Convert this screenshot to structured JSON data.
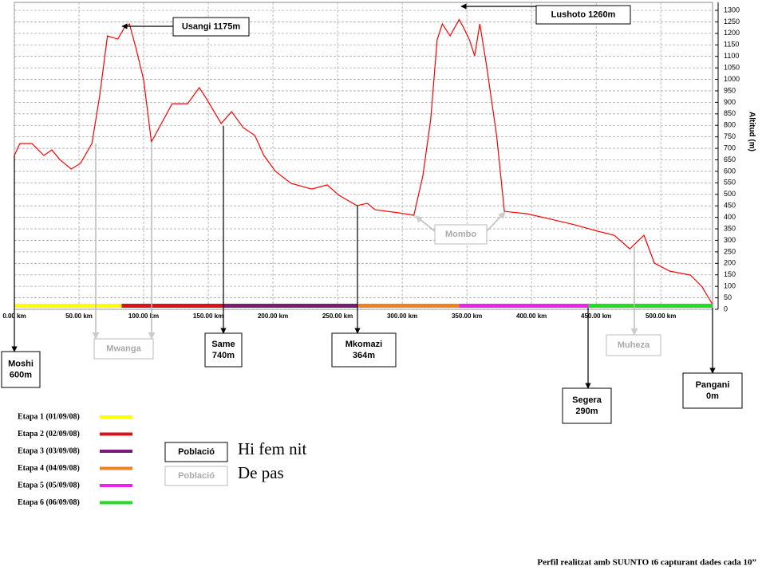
{
  "chart_data": {
    "type": "line",
    "x": [
      0,
      4.3,
      13.6,
      22.8,
      29,
      35,
      44,
      51,
      60,
      66,
      72,
      80,
      85,
      89,
      94,
      100,
      106,
      112,
      122,
      134,
      143,
      149,
      160,
      168,
      177,
      186,
      193,
      202,
      214,
      230,
      242,
      251,
      265,
      273,
      279,
      297,
      309,
      316,
      322,
      327,
      331,
      337,
      344,
      347,
      352,
      356,
      360,
      365,
      373,
      379,
      396,
      415,
      433,
      451,
      464,
      476,
      487,
      495,
      507,
      523,
      532,
      540
    ],
    "values": [
      669,
      721,
      721,
      669,
      693,
      652,
      610,
      634,
      721,
      929,
      1189,
      1175,
      1224,
      1241,
      1137,
      998,
      728,
      790,
      894,
      894,
      964,
      912,
      808,
      860,
      790,
      756,
      669,
      600,
      548,
      523,
      541,
      496,
      451,
      461,
      433,
      420,
      409,
      582,
      825,
      1172,
      1241,
      1189,
      1260,
      1230,
      1172,
      1102,
      1241,
      1068,
      756,
      426,
      416,
      392,
      368,
      340,
      322,
      263,
      322,
      201,
      166,
      149,
      97,
      21
    ],
    "color": "#ff0000",
    "xlim": [
      0,
      540
    ],
    "ylim": [
      0,
      1300
    ],
    "grid": true,
    "xticks": [
      {
        "value": 0,
        "label": "0.00 km"
      },
      {
        "value": 50,
        "label": "50.00 km"
      },
      {
        "value": 100,
        "label": "100.00 km"
      },
      {
        "value": 150,
        "label": "150.00 km"
      },
      {
        "value": 200,
        "label": "200.00 km"
      },
      {
        "value": 250,
        "label": "250.00 km"
      },
      {
        "value": 300,
        "label": "300.00 km"
      },
      {
        "value": 350,
        "label": "350.00 km"
      },
      {
        "value": 400,
        "label": "400.00 km"
      },
      {
        "value": 450,
        "label": "450.00 km"
      },
      {
        "value": 500,
        "label": "500.00 km"
      }
    ],
    "yticks": [
      0,
      50,
      100,
      150,
      200,
      250,
      300,
      350,
      400,
      450,
      500,
      550,
      600,
      650,
      700,
      750,
      800,
      850,
      900,
      950,
      1000,
      1050,
      1100,
      1150,
      1200,
      1250,
      1300
    ],
    "y_label": "Altitud (m)",
    "stages": [
      {
        "name": "Etapa 1 (01/09/08)",
        "color": "#ffff00",
        "start": 0,
        "end": 83
      },
      {
        "name": "Etapa 2 (02/09/08)",
        "color": "#dd1111",
        "start": 83,
        "end": 162
      },
      {
        "name": "Etapa 3 (03/09/08)",
        "color": "#7a1a7a",
        "start": 162,
        "end": 265
      },
      {
        "name": "Etapa 4 (04/09/08)",
        "color": "#f08020",
        "start": 265,
        "end": 344
      },
      {
        "name": "Etapa 5 (05/09/08)",
        "color": "#ee22ee",
        "start": 344,
        "end": 444
      },
      {
        "name": "Etapa 6 (06/09/08)",
        "color": "#22dd22",
        "start": 444,
        "end": 540
      }
    ],
    "annotations": [
      {
        "lines": [
          "Usangi 1175m"
        ]
      },
      {
        "lines": [
          "Lushoto 1260m"
        ]
      },
      {
        "lines": [
          "Moshi",
          "600m"
        ]
      },
      {
        "lines": [
          "Mwanga"
        ]
      },
      {
        "lines": [
          "Same",
          "740m"
        ]
      },
      {
        "lines": [
          "Mkomazi",
          "364m"
        ]
      },
      {
        "lines": [
          "Mombo"
        ]
      },
      {
        "lines": [
          "Muheza"
        ]
      },
      {
        "lines": [
          "Segera",
          "290m"
        ]
      },
      {
        "lines": [
          "Pangani",
          "0m"
        ]
      }
    ],
    "key": [
      {
        "label": "Població",
        "text": "Hi fem nit"
      },
      {
        "label": "Població",
        "text": "De pas"
      }
    ],
    "note": "Perfil realitzat amb SUUNTO t6 capturant dades cada 10”"
  }
}
